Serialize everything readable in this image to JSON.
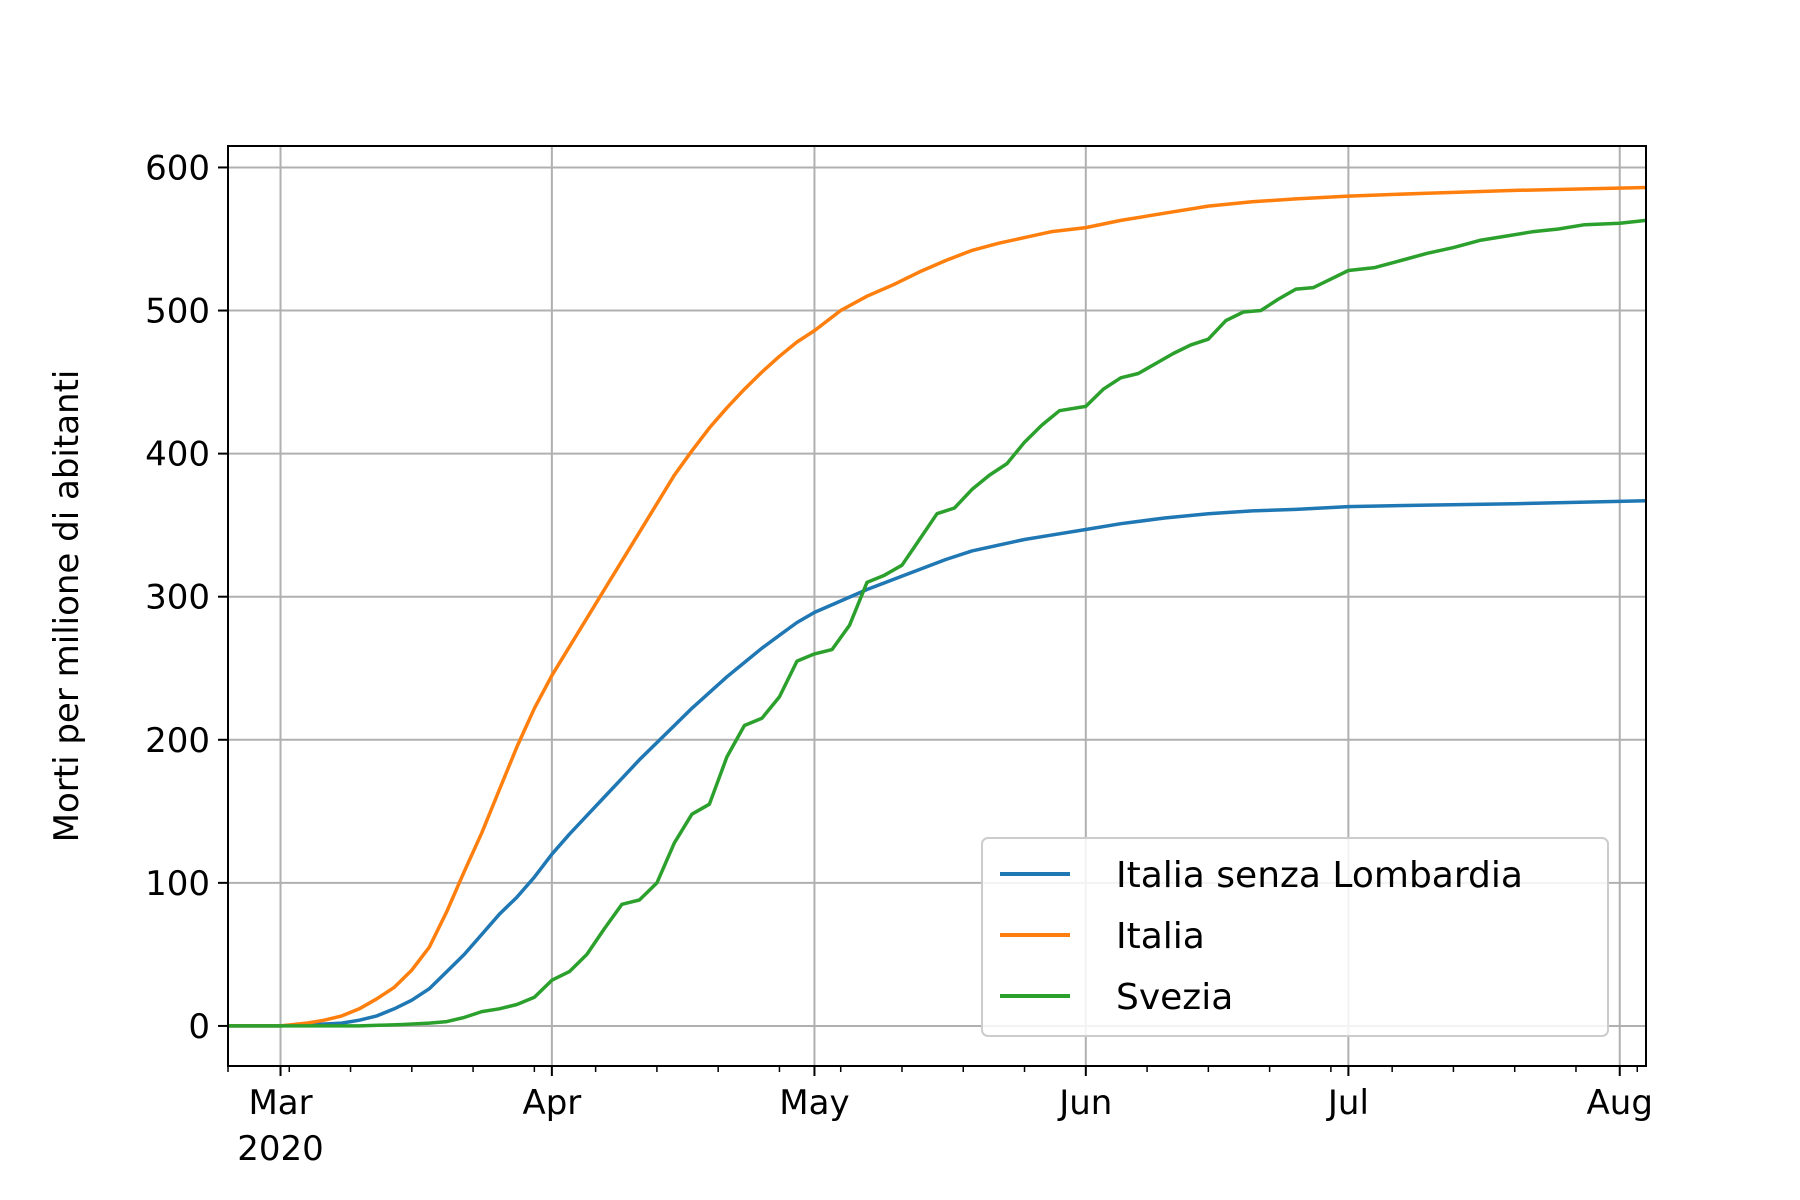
{
  "chart_data": {
    "type": "line",
    "title": "",
    "xlabel": "",
    "ylabel": "Morti per milione di abitanti",
    "x_axis": {
      "type": "date",
      "range": [
        "2020-02-24",
        "2020-08-04"
      ],
      "ticks": [
        {
          "date": "2020-03-01",
          "label": "Mar",
          "sublabel": "2020"
        },
        {
          "date": "2020-04-01",
          "label": "Apr"
        },
        {
          "date": "2020-05-01",
          "label": "May"
        },
        {
          "date": "2020-06-01",
          "label": "Jun"
        },
        {
          "date": "2020-07-01",
          "label": "Jul"
        },
        {
          "date": "2020-08-01",
          "label": "Aug"
        }
      ]
    },
    "y_axis": {
      "range": [
        -28,
        615
      ],
      "ticks": [
        0,
        100,
        200,
        300,
        400,
        500,
        600
      ]
    },
    "grid": true,
    "legend": {
      "position": "lower-right"
    },
    "series": [
      {
        "name": "Italia senza Lombardia",
        "color": "#1f77b4",
        "points": [
          [
            "2020-02-24",
            0
          ],
          [
            "2020-03-01",
            0
          ],
          [
            "2020-03-05",
            1
          ],
          [
            "2020-03-08",
            2
          ],
          [
            "2020-03-10",
            4
          ],
          [
            "2020-03-12",
            7
          ],
          [
            "2020-03-14",
            12
          ],
          [
            "2020-03-16",
            18
          ],
          [
            "2020-03-18",
            26
          ],
          [
            "2020-03-20",
            38
          ],
          [
            "2020-03-22",
            50
          ],
          [
            "2020-03-24",
            64
          ],
          [
            "2020-03-26",
            78
          ],
          [
            "2020-03-28",
            90
          ],
          [
            "2020-03-30",
            104
          ],
          [
            "2020-04-01",
            120
          ],
          [
            "2020-04-03",
            134
          ],
          [
            "2020-04-05",
            147
          ],
          [
            "2020-04-07",
            160
          ],
          [
            "2020-04-09",
            173
          ],
          [
            "2020-04-11",
            186
          ],
          [
            "2020-04-13",
            198
          ],
          [
            "2020-04-15",
            210
          ],
          [
            "2020-04-17",
            222
          ],
          [
            "2020-04-19",
            233
          ],
          [
            "2020-04-21",
            244
          ],
          [
            "2020-04-23",
            254
          ],
          [
            "2020-04-25",
            264
          ],
          [
            "2020-04-27",
            273
          ],
          [
            "2020-04-29",
            282
          ],
          [
            "2020-05-01",
            289
          ],
          [
            "2020-05-04",
            297
          ],
          [
            "2020-05-07",
            305
          ],
          [
            "2020-05-10",
            312
          ],
          [
            "2020-05-13",
            319
          ],
          [
            "2020-05-16",
            326
          ],
          [
            "2020-05-19",
            332
          ],
          [
            "2020-05-22",
            336
          ],
          [
            "2020-05-25",
            340
          ],
          [
            "2020-05-28",
            343
          ],
          [
            "2020-06-01",
            347
          ],
          [
            "2020-06-05",
            351
          ],
          [
            "2020-06-10",
            355
          ],
          [
            "2020-06-15",
            358
          ],
          [
            "2020-06-20",
            360
          ],
          [
            "2020-06-25",
            361
          ],
          [
            "2020-07-01",
            363
          ],
          [
            "2020-07-10",
            364
          ],
          [
            "2020-07-20",
            365
          ],
          [
            "2020-08-04",
            367
          ]
        ]
      },
      {
        "name": "Italia",
        "color": "#ff7f0e",
        "points": [
          [
            "2020-02-24",
            0
          ],
          [
            "2020-03-01",
            0
          ],
          [
            "2020-03-04",
            2
          ],
          [
            "2020-03-06",
            4
          ],
          [
            "2020-03-08",
            7
          ],
          [
            "2020-03-10",
            12
          ],
          [
            "2020-03-12",
            19
          ],
          [
            "2020-03-14",
            27
          ],
          [
            "2020-03-16",
            39
          ],
          [
            "2020-03-18",
            55
          ],
          [
            "2020-03-20",
            80
          ],
          [
            "2020-03-22",
            108
          ],
          [
            "2020-03-24",
            135
          ],
          [
            "2020-03-26",
            165
          ],
          [
            "2020-03-28",
            195
          ],
          [
            "2020-03-30",
            222
          ],
          [
            "2020-04-01",
            245
          ],
          [
            "2020-04-03",
            265
          ],
          [
            "2020-04-05",
            285
          ],
          [
            "2020-04-07",
            305
          ],
          [
            "2020-04-09",
            325
          ],
          [
            "2020-04-11",
            345
          ],
          [
            "2020-04-13",
            365
          ],
          [
            "2020-04-15",
            385
          ],
          [
            "2020-04-17",
            402
          ],
          [
            "2020-04-19",
            418
          ],
          [
            "2020-04-21",
            432
          ],
          [
            "2020-04-23",
            445
          ],
          [
            "2020-04-25",
            457
          ],
          [
            "2020-04-27",
            468
          ],
          [
            "2020-04-29",
            478
          ],
          [
            "2020-05-01",
            486
          ],
          [
            "2020-05-04",
            500
          ],
          [
            "2020-05-07",
            510
          ],
          [
            "2020-05-10",
            518
          ],
          [
            "2020-05-13",
            527
          ],
          [
            "2020-05-16",
            535
          ],
          [
            "2020-05-19",
            542
          ],
          [
            "2020-05-22",
            547
          ],
          [
            "2020-05-25",
            551
          ],
          [
            "2020-05-28",
            555
          ],
          [
            "2020-06-01",
            558
          ],
          [
            "2020-06-05",
            563
          ],
          [
            "2020-06-10",
            568
          ],
          [
            "2020-06-15",
            573
          ],
          [
            "2020-06-20",
            576
          ],
          [
            "2020-06-25",
            578
          ],
          [
            "2020-07-01",
            580
          ],
          [
            "2020-07-10",
            582
          ],
          [
            "2020-07-20",
            584
          ],
          [
            "2020-08-04",
            586
          ]
        ]
      },
      {
        "name": "Svezia",
        "color": "#2ca02c",
        "points": [
          [
            "2020-02-24",
            0
          ],
          [
            "2020-03-10",
            0
          ],
          [
            "2020-03-15",
            1
          ],
          [
            "2020-03-18",
            2
          ],
          [
            "2020-03-20",
            3
          ],
          [
            "2020-03-22",
            6
          ],
          [
            "2020-03-24",
            10
          ],
          [
            "2020-03-26",
            12
          ],
          [
            "2020-03-28",
            15
          ],
          [
            "2020-03-30",
            20
          ],
          [
            "2020-04-01",
            32
          ],
          [
            "2020-04-03",
            38
          ],
          [
            "2020-04-05",
            50
          ],
          [
            "2020-04-07",
            68
          ],
          [
            "2020-04-09",
            85
          ],
          [
            "2020-04-11",
            88
          ],
          [
            "2020-04-13",
            100
          ],
          [
            "2020-04-15",
            128
          ],
          [
            "2020-04-17",
            148
          ],
          [
            "2020-04-19",
            155
          ],
          [
            "2020-04-21",
            188
          ],
          [
            "2020-04-23",
            210
          ],
          [
            "2020-04-25",
            215
          ],
          [
            "2020-04-27",
            230
          ],
          [
            "2020-04-29",
            255
          ],
          [
            "2020-05-01",
            260
          ],
          [
            "2020-05-03",
            263
          ],
          [
            "2020-05-05",
            280
          ],
          [
            "2020-05-07",
            310
          ],
          [
            "2020-05-09",
            315
          ],
          [
            "2020-05-11",
            322
          ],
          [
            "2020-05-13",
            340
          ],
          [
            "2020-05-15",
            358
          ],
          [
            "2020-05-17",
            362
          ],
          [
            "2020-05-19",
            375
          ],
          [
            "2020-05-21",
            385
          ],
          [
            "2020-05-23",
            393
          ],
          [
            "2020-05-25",
            408
          ],
          [
            "2020-05-27",
            420
          ],
          [
            "2020-05-29",
            430
          ],
          [
            "2020-06-01",
            433
          ],
          [
            "2020-06-03",
            445
          ],
          [
            "2020-06-05",
            453
          ],
          [
            "2020-06-07",
            456
          ],
          [
            "2020-06-09",
            463
          ],
          [
            "2020-06-11",
            470
          ],
          [
            "2020-06-13",
            476
          ],
          [
            "2020-06-15",
            480
          ],
          [
            "2020-06-17",
            493
          ],
          [
            "2020-06-19",
            499
          ],
          [
            "2020-06-21",
            500
          ],
          [
            "2020-06-23",
            508
          ],
          [
            "2020-06-25",
            515
          ],
          [
            "2020-06-27",
            516
          ],
          [
            "2020-06-29",
            522
          ],
          [
            "2020-07-01",
            528
          ],
          [
            "2020-07-04",
            530
          ],
          [
            "2020-07-07",
            535
          ],
          [
            "2020-07-10",
            540
          ],
          [
            "2020-07-13",
            544
          ],
          [
            "2020-07-16",
            549
          ],
          [
            "2020-07-19",
            552
          ],
          [
            "2020-07-22",
            555
          ],
          [
            "2020-07-25",
            557
          ],
          [
            "2020-07-28",
            560
          ],
          [
            "2020-08-01",
            561
          ],
          [
            "2020-08-04",
            563
          ]
        ]
      }
    ]
  }
}
